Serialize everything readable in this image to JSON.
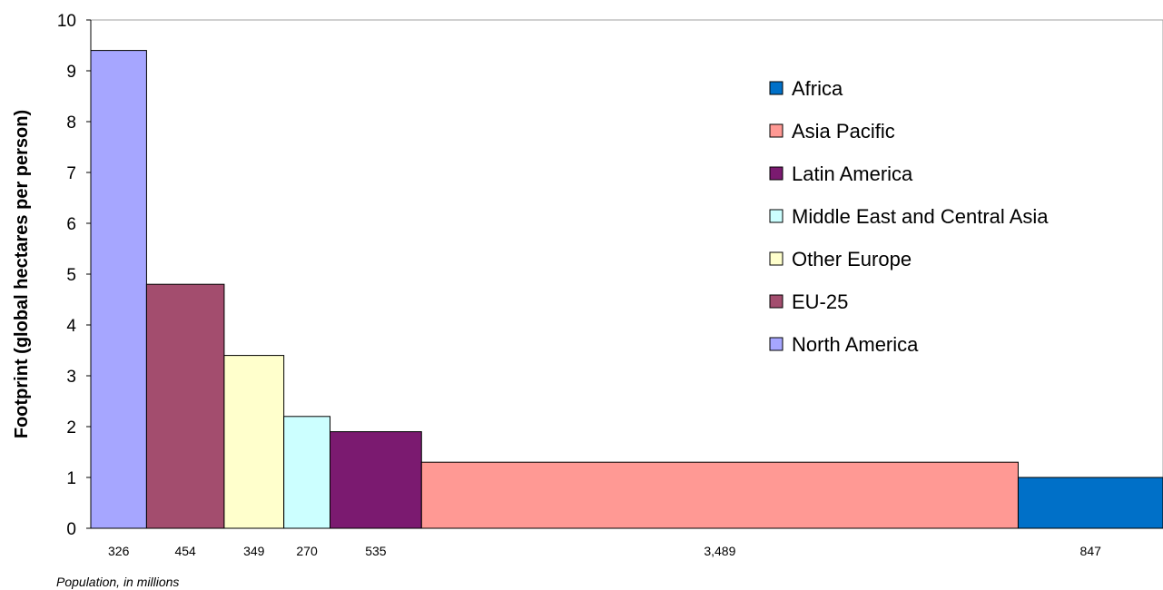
{
  "chart_data": {
    "type": "bar",
    "ylabel": "Footprint (global hectares per person)",
    "xlabel": "Population, in millions",
    "ylim": [
      0,
      10
    ],
    "yticks": [
      "0",
      "1",
      "2",
      "3",
      "4",
      "5",
      "6",
      "7",
      "8",
      "9",
      "10"
    ],
    "grid": false,
    "legend_position": "top-right",
    "bars": [
      {
        "name": "North America",
        "population": 326,
        "population_label": "326",
        "value": 9.4,
        "color": "#A6A6FF"
      },
      {
        "name": "EU-25",
        "population": 454,
        "population_label": "454",
        "value": 4.8,
        "color": "#A34D6E"
      },
      {
        "name": "Other Europe",
        "population": 349,
        "population_label": "349",
        "value": 3.4,
        "color": "#FFFFCC"
      },
      {
        "name": "Middle East and Central Asia",
        "population": 270,
        "population_label": "270",
        "value": 2.2,
        "color": "#CCFFFF"
      },
      {
        "name": "Latin America",
        "population": 535,
        "population_label": "535",
        "value": 1.9,
        "color": "#7B1A70"
      },
      {
        "name": "Asia Pacific",
        "population": 3489,
        "population_label": "3,489",
        "value": 1.3,
        "color": "#FF9994"
      },
      {
        "name": "Africa",
        "population": 847,
        "population_label": "847",
        "value": 1.0,
        "color": "#0070C8"
      }
    ],
    "legend": [
      {
        "name": "Africa",
        "color": "#0070C8"
      },
      {
        "name": "Asia Pacific",
        "color": "#FF9994"
      },
      {
        "name": "Latin America",
        "color": "#7B1A70"
      },
      {
        "name": "Middle East and Central Asia",
        "color": "#CCFFFF"
      },
      {
        "name": "Other Europe",
        "color": "#FFFFCC"
      },
      {
        "name": "EU-25",
        "color": "#A34D6E"
      },
      {
        "name": "North America",
        "color": "#A6A6FF"
      }
    ]
  }
}
